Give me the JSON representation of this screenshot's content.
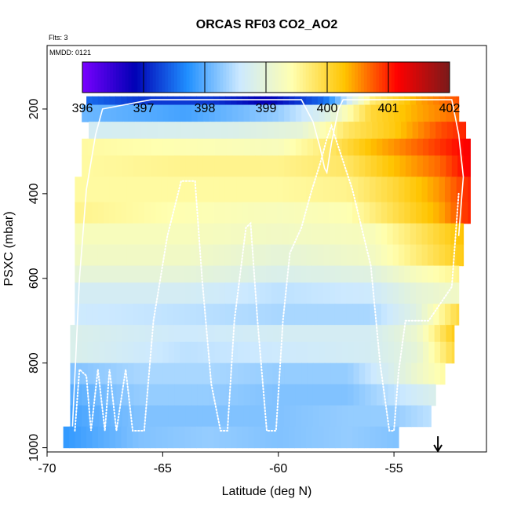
{
  "chart_data": {
    "type": "heatmap",
    "title": "ORCAS RF03 CO2_AO2",
    "subtitle_flights": "Flts: 3",
    "subtitle_date": "MMDD: 0121",
    "xlabel": "Latitude (deg N)",
    "ylabel": "PSXC (mbar)",
    "xlim": [
      -70,
      -51
    ],
    "ylim": [
      1010,
      50
    ],
    "x_ticks": [
      -70,
      -65,
      -60,
      -55
    ],
    "x_tick_labels": [
      "-70",
      "-65",
      "-60",
      "-55"
    ],
    "y_ticks": [
      200,
      400,
      600,
      800,
      1000
    ],
    "y_tick_labels": [
      "200",
      "400",
      "600",
      "800",
      "1000"
    ],
    "colorbar": {
      "range": [
        396,
        402
      ],
      "ticks": [
        396,
        397,
        398,
        399,
        400,
        401,
        402
      ],
      "tick_labels": [
        "396",
        "397",
        "398",
        "399",
        "400",
        "401",
        "402"
      ],
      "colors": [
        "#7a00ff",
        "#0000b5",
        "#1f8fff",
        "#cce9ff",
        "#ffffb0",
        "#ffc400",
        "#ff0000",
        "#7a1a1a"
      ]
    },
    "grid": false,
    "legend_position": "top-center",
    "arrow_marker_lat": -53.1,
    "layers": [
      {
        "p_top": 170,
        "p_bot": 190,
        "lat_min": -68.3,
        "lat_max": -52.2,
        "anchors": [
          [
            -68.3,
            397.5
          ],
          [
            -66,
            397.2
          ],
          [
            -63,
            397.2
          ],
          [
            -60.5,
            396.8
          ],
          [
            -58,
            397.5
          ],
          [
            -56,
            399.7
          ],
          [
            -54,
            400.4
          ],
          [
            -52.2,
            400.8
          ]
        ]
      },
      {
        "p_top": 190,
        "p_bot": 230,
        "lat_min": -68.5,
        "lat_max": -52.2,
        "anchors": [
          [
            -68.5,
            398.1
          ],
          [
            -64,
            397.9
          ],
          [
            -60,
            398.3
          ],
          [
            -58,
            398.8
          ],
          [
            -56,
            400.0
          ],
          [
            -54,
            400.4
          ],
          [
            -52.2,
            400.7
          ]
        ]
      },
      {
        "p_top": 230,
        "p_bot": 270,
        "lat_min": -68.2,
        "lat_max": -51.9,
        "anchors": [
          [
            -68.2,
            398.7
          ],
          [
            -62,
            398.8
          ],
          [
            -59,
            399.0
          ],
          [
            -57,
            399.8
          ],
          [
            -55,
            400.2
          ],
          [
            -53,
            400.8
          ],
          [
            -51.9,
            401.0
          ]
        ]
      },
      {
        "p_top": 270,
        "p_bot": 310,
        "lat_min": -68.5,
        "lat_max": -51.7,
        "anchors": [
          [
            -68.5,
            399.5
          ],
          [
            -64,
            399.4
          ],
          [
            -60,
            399.3
          ],
          [
            -58,
            399.7
          ],
          [
            -56,
            400.3
          ],
          [
            -54,
            400.7
          ],
          [
            -51.7,
            401.2
          ]
        ]
      },
      {
        "p_top": 310,
        "p_bot": 360,
        "lat_min": -68.5,
        "lat_max": -51.7,
        "anchors": [
          [
            -68.5,
            399.5
          ],
          [
            -64,
            399.6
          ],
          [
            -60,
            399.6
          ],
          [
            -57,
            399.8
          ],
          [
            -55,
            400.3
          ],
          [
            -53,
            400.7
          ],
          [
            -51.7,
            401.2
          ]
        ]
      },
      {
        "p_top": 360,
        "p_bot": 420,
        "lat_min": -68.8,
        "lat_max": -51.7,
        "anchors": [
          [
            -68.8,
            399.5
          ],
          [
            -64,
            399.5
          ],
          [
            -60,
            399.5
          ],
          [
            -57,
            399.6
          ],
          [
            -55,
            400.0
          ],
          [
            -53,
            400.5
          ],
          [
            -51.7,
            401.0
          ]
        ]
      },
      {
        "p_top": 420,
        "p_bot": 470,
        "lat_min": -68.8,
        "lat_max": -51.7,
        "anchors": [
          [
            -68.8,
            399.6
          ],
          [
            -64,
            399.4
          ],
          [
            -60,
            399.3
          ],
          [
            -57,
            399.4
          ],
          [
            -55,
            399.9
          ],
          [
            -53,
            400.4
          ],
          [
            -51.7,
            401.0
          ]
        ]
      },
      {
        "p_top": 470,
        "p_bot": 520,
        "lat_min": -68.8,
        "lat_max": -52.0,
        "anchors": [
          [
            -68.8,
            399.3
          ],
          [
            -64,
            399.3
          ],
          [
            -60,
            399.2
          ],
          [
            -56,
            399.3
          ],
          [
            -54,
            399.8
          ],
          [
            -52,
            400.3
          ]
        ]
      },
      {
        "p_top": 520,
        "p_bot": 570,
        "lat_min": -68.8,
        "lat_max": -52.0,
        "anchors": [
          [
            -68.8,
            399.2
          ],
          [
            -64,
            399.2
          ],
          [
            -60,
            399.0
          ],
          [
            -56,
            399.2
          ],
          [
            -54,
            399.7
          ],
          [
            -52,
            400.2
          ]
        ]
      },
      {
        "p_top": 570,
        "p_bot": 610,
        "lat_min": -68.8,
        "lat_max": -52.2,
        "anchors": [
          [
            -68.8,
            399.0
          ],
          [
            -64,
            399.0
          ],
          [
            -60,
            398.8
          ],
          [
            -56,
            398.9
          ],
          [
            -54,
            399.3
          ],
          [
            -52.2,
            399.6
          ]
        ]
      },
      {
        "p_top": 610,
        "p_bot": 660,
        "lat_min": -68.8,
        "lat_max": -52.2,
        "anchors": [
          [
            -68.8,
            398.7
          ],
          [
            -64,
            398.7
          ],
          [
            -60,
            398.5
          ],
          [
            -56,
            398.6
          ],
          [
            -54,
            399.0
          ],
          [
            -52.2,
            399.2
          ]
        ]
      },
      {
        "p_top": 660,
        "p_bot": 710,
        "lat_min": -68.8,
        "lat_max": -52.2,
        "anchors": [
          [
            -68.8,
            398.6
          ],
          [
            -64,
            398.5
          ],
          [
            -60,
            398.4
          ],
          [
            -56,
            398.4
          ],
          [
            -54,
            398.9
          ],
          [
            -52.2,
            400.0
          ]
        ]
      },
      {
        "p_top": 710,
        "p_bot": 750,
        "lat_min": -69.0,
        "lat_max": -52.4,
        "anchors": [
          [
            -69,
            398.8
          ],
          [
            -64,
            398.6
          ],
          [
            -60,
            398.7
          ],
          [
            -56,
            398.7
          ],
          [
            -54,
            399.1
          ],
          [
            -52.4,
            400.2
          ]
        ]
      },
      {
        "p_top": 750,
        "p_bot": 800,
        "lat_min": -69.0,
        "lat_max": -52.4,
        "anchors": [
          [
            -69,
            398.8
          ],
          [
            -64,
            398.5
          ],
          [
            -60,
            398.6
          ],
          [
            -56,
            398.7
          ],
          [
            -54,
            399.0
          ],
          [
            -52.4,
            400.0
          ]
        ]
      },
      {
        "p_top": 800,
        "p_bot": 850,
        "lat_min": -69.0,
        "lat_max": -52.8,
        "anchors": [
          [
            -69,
            398.2
          ],
          [
            -66,
            398.4
          ],
          [
            -63,
            398.4
          ],
          [
            -60,
            398.3
          ],
          [
            -57,
            398.3
          ],
          [
            -55,
            398.8
          ],
          [
            -52.8,
            399.5
          ]
        ]
      },
      {
        "p_top": 850,
        "p_bot": 900,
        "lat_min": -69.0,
        "lat_max": -53.2,
        "anchors": [
          [
            -69,
            398.0
          ],
          [
            -66,
            398.3
          ],
          [
            -63,
            398.3
          ],
          [
            -60,
            398.2
          ],
          [
            -57,
            398.2
          ],
          [
            -55,
            398.5
          ],
          [
            -53.2,
            398.8
          ]
        ]
      },
      {
        "p_top": 900,
        "p_bot": 950,
        "lat_min": -69.0,
        "lat_max": -53.4,
        "anchors": [
          [
            -69,
            397.9
          ],
          [
            -66,
            398.2
          ],
          [
            -63,
            398.2
          ],
          [
            -60,
            398.2
          ],
          [
            -57,
            398.3
          ],
          [
            -55,
            398.3
          ],
          [
            -53.4,
            398.5
          ]
        ]
      },
      {
        "p_top": 950,
        "p_bot": 1000,
        "lat_min": -69.3,
        "lat_max": -54.8,
        "anchors": [
          [
            -69.3,
            397.8
          ],
          [
            -66,
            398.2
          ],
          [
            -63,
            398.3
          ],
          [
            -60,
            398.2
          ],
          [
            -57,
            398.3
          ],
          [
            -54.8,
            398.2
          ]
        ]
      }
    ],
    "flight_tracks": [
      {
        "style": "solid",
        "points": [
          [
            -68.9,
            950
          ],
          [
            -68.6,
            600
          ],
          [
            -68.3,
            390
          ],
          [
            -67.9,
            260
          ],
          [
            -67.6,
            200
          ],
          [
            -65.5,
            178
          ],
          [
            -64.0,
            178
          ],
          [
            -63,
            178
          ],
          [
            -62.5,
            178
          ],
          [
            -61,
            178
          ],
          [
            -59,
            178
          ],
          [
            -58.5,
            230
          ],
          [
            -58.2,
            290
          ],
          [
            -58,
            340
          ],
          [
            -57.9,
            350
          ],
          [
            -57.7,
            280
          ],
          [
            -57.4,
            200
          ],
          [
            -57.2,
            178
          ],
          [
            -55,
            178
          ],
          [
            -53,
            178
          ],
          [
            -52.5,
            178
          ],
          [
            -52.2,
            260
          ],
          [
            -52,
            360
          ],
          [
            -52.2,
            500
          ]
        ]
      },
      {
        "style": "dotted",
        "points": [
          [
            -68.8,
            960
          ],
          [
            -68.6,
            815
          ],
          [
            -68.3,
            830
          ],
          [
            -68.1,
            960
          ],
          [
            -67.8,
            815
          ],
          [
            -67.5,
            960
          ],
          [
            -67.3,
            815
          ],
          [
            -67.0,
            960
          ],
          [
            -66.6,
            815
          ],
          [
            -66.3,
            960
          ],
          [
            -66.0,
            960
          ],
          [
            -65.8,
            960
          ],
          [
            -65.4,
            700
          ],
          [
            -64.8,
            500
          ],
          [
            -64.2,
            370
          ],
          [
            -63.6,
            370
          ],
          [
            -63.3,
            600
          ],
          [
            -62.9,
            850
          ],
          [
            -62.5,
            960
          ],
          [
            -62.2,
            960
          ],
          [
            -61.9,
            700
          ],
          [
            -61.4,
            480
          ],
          [
            -61.2,
            470
          ],
          [
            -60.9,
            700
          ],
          [
            -60.5,
            960
          ],
          [
            -60.1,
            960
          ],
          [
            -59.8,
            700
          ],
          [
            -59.5,
            540
          ],
          [
            -59.0,
            480
          ],
          [
            -58.6,
            400
          ],
          [
            -58.2,
            330
          ],
          [
            -57.9,
            270
          ],
          [
            -57.7,
            240
          ],
          [
            -56.8,
            390
          ],
          [
            -56.0,
            570
          ],
          [
            -55.6,
            800
          ],
          [
            -55.2,
            960
          ],
          [
            -55.0,
            960
          ],
          [
            -54.8,
            820
          ],
          [
            -54.5,
            700
          ],
          [
            -54.0,
            700
          ],
          [
            -53.5,
            700
          ],
          [
            -53.0,
            660
          ],
          [
            -52.5,
            620
          ],
          [
            -52.2,
            400
          ]
        ]
      }
    ]
  }
}
